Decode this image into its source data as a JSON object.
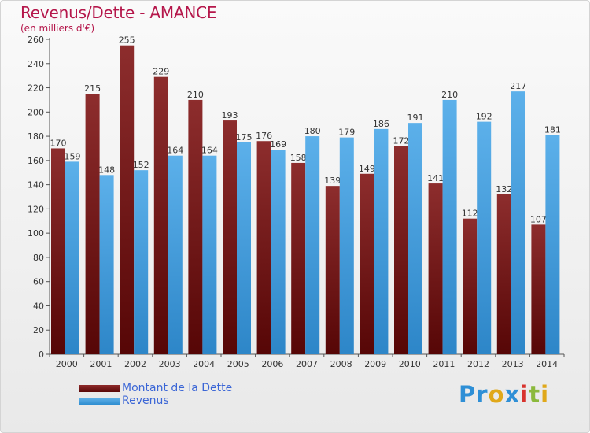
{
  "title": "Revenus/Dette - AMANCE",
  "subtitle": "(en milliers d'€)",
  "legend": {
    "dette": "Montant de la Dette",
    "revenus": "Revenus"
  },
  "logo": "Proxiti",
  "colors": {
    "dette": "#7a1a1a",
    "revenus": "#4ca6e4",
    "title": "#b5174b",
    "legend_text": "#3b66d6"
  },
  "chart_data": {
    "type": "bar",
    "categories": [
      "2000",
      "2001",
      "2002",
      "2003",
      "2004",
      "2005",
      "2006",
      "2007",
      "2008",
      "2009",
      "2010",
      "2011",
      "2012",
      "2013",
      "2014"
    ],
    "series": [
      {
        "name": "Montant de la Dette",
        "values": [
          170,
          215,
          255,
          229,
          210,
          193,
          176,
          158,
          139,
          149,
          172,
          141,
          112,
          132,
          107
        ]
      },
      {
        "name": "Revenus",
        "values": [
          159,
          148,
          152,
          164,
          164,
          175,
          169,
          180,
          179,
          186,
          191,
          210,
          192,
          217,
          181
        ]
      }
    ],
    "ylim": [
      0,
      260
    ],
    "ytick_step": 20,
    "grid": false,
    "legend_position": "bottom-left"
  }
}
